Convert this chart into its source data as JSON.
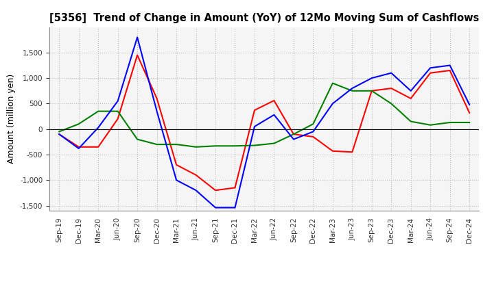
{
  "title": "[5356]  Trend of Change in Amount (YoY) of 12Mo Moving Sum of Cashflows",
  "ylabel": "Amount (million yen)",
  "ylim": [
    -1600,
    2000
  ],
  "yticks": [
    -1500,
    -1000,
    -500,
    0,
    500,
    1000,
    1500
  ],
  "x_labels": [
    "Sep-19",
    "Dec-19",
    "Mar-20",
    "Jun-20",
    "Sep-20",
    "Dec-20",
    "Mar-21",
    "Jun-21",
    "Sep-21",
    "Dec-21",
    "Mar-22",
    "Jun-22",
    "Sep-22",
    "Dec-22",
    "Mar-23",
    "Jun-23",
    "Sep-23",
    "Dec-23",
    "Mar-24",
    "Jun-24",
    "Sep-24",
    "Dec-24"
  ],
  "operating": [
    -100,
    -350,
    -350,
    200,
    1450,
    600,
    -700,
    -900,
    -1200,
    -1150,
    370,
    560,
    -100,
    -150,
    -430,
    -450,
    750,
    800,
    600,
    1100,
    1150,
    320
  ],
  "investing": [
    -50,
    100,
    350,
    350,
    -200,
    -300,
    -300,
    -350,
    -330,
    -330,
    -320,
    -280,
    -100,
    100,
    900,
    750,
    750,
    500,
    150,
    80,
    130,
    130
  ],
  "free": [
    -100,
    -380,
    30,
    550,
    1800,
    350,
    -1000,
    -1200,
    -1540,
    -1540,
    50,
    280,
    -200,
    -50,
    500,
    800,
    1000,
    1100,
    750,
    1200,
    1250,
    480
  ],
  "operating_color": "#FF0000",
  "investing_color": "#008000",
  "free_color": "#0000FF",
  "plot_bg_color": "#F5F5F5",
  "fig_bg_color": "#FFFFFF",
  "grid_color": "#BBBBBB"
}
